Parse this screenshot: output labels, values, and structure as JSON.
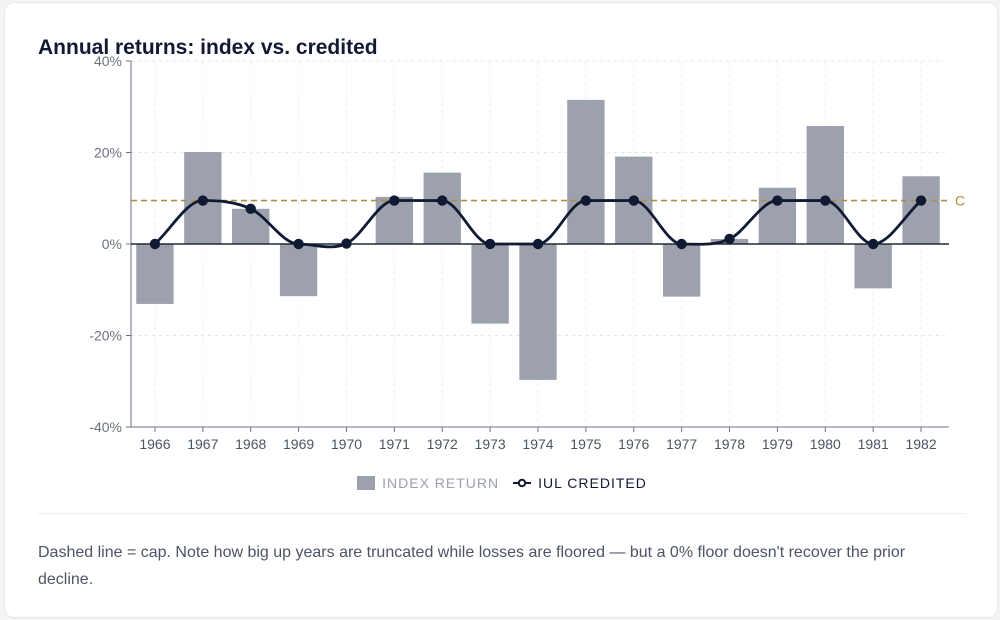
{
  "chart_data": {
    "type": "bar",
    "title": "Annual returns: index vs. credited",
    "categories": [
      "1966",
      "1967",
      "1968",
      "1969",
      "1970",
      "1971",
      "1972",
      "1973",
      "1974",
      "1975",
      "1976",
      "1977",
      "1978",
      "1979",
      "1980",
      "1981",
      "1982"
    ],
    "series": [
      {
        "name": "INDEX RETURN",
        "type": "bar",
        "color": "#9ca1ad",
        "values": [
          -13.1,
          20.1,
          7.7,
          -11.4,
          0.1,
          10.3,
          15.6,
          -17.4,
          -29.7,
          31.5,
          19.1,
          -11.5,
          1.1,
          12.3,
          25.8,
          -9.7,
          14.8
        ]
      },
      {
        "name": "IUL CREDITED",
        "type": "line",
        "color": "#111a33",
        "values": [
          0,
          9.5,
          7.7,
          0,
          0.1,
          9.5,
          9.5,
          0,
          0,
          9.5,
          9.5,
          0,
          1.1,
          9.5,
          9.5,
          0,
          9.5
        ]
      }
    ],
    "cap": {
      "value": 9.5,
      "label": "Cap",
      "color": "#b08d46"
    },
    "ylim": [
      -40,
      40
    ],
    "yticks": [
      "40%",
      "20%",
      "0%",
      "-20%",
      "-40%"
    ],
    "xlabel": "",
    "ylabel": "",
    "grid": true,
    "legend": "bottom-center"
  },
  "note": "Dashed line = cap. Note how big up years are truncated while losses are floored — but a 0% floor doesn't recover the prior decline."
}
